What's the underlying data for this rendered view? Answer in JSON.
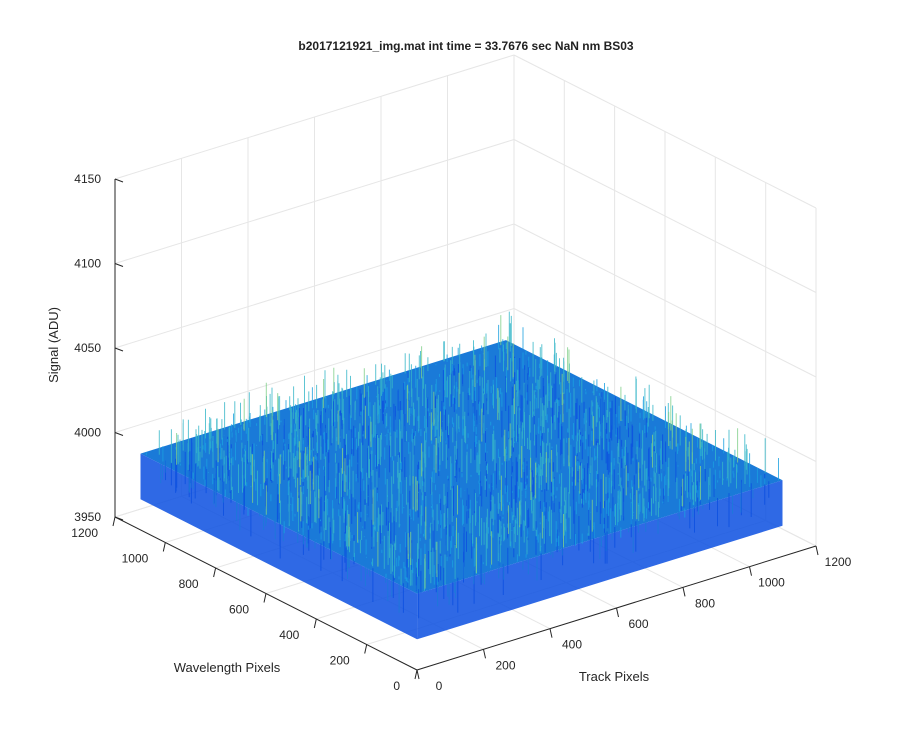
{
  "chart_data": {
    "type": "surface",
    "title": "b2017121921_img.mat int time = 33.7676 sec  NaN nm BS03",
    "zlabel": "Signal (ADU)",
    "xlabel": "Track Pixels",
    "ylabel": "Wavelength Pixels",
    "xlim": [
      0,
      1200
    ],
    "ylim": [
      0,
      1200
    ],
    "zlim": [
      3950,
      4150
    ],
    "x_ticks": [
      "0",
      "200",
      "400",
      "600",
      "800",
      "1000",
      "1200"
    ],
    "y_ticks": [
      "0",
      "200",
      "400",
      "600",
      "800",
      "1000",
      "1200"
    ],
    "z_ticks": [
      "3950",
      "4000",
      "4050",
      "4100",
      "4150"
    ],
    "grid": true,
    "surface": {
      "x_range": [
        1,
        1100
      ],
      "y_range": [
        1,
        1100
      ],
      "z_mean": 3995,
      "z_noise_range": [
        3960,
        4030
      ],
      "colormap": "parula",
      "colors": [
        "#0b4fe0",
        "#1a7ad8",
        "#1aa0e0",
        "#36b7c8",
        "#7fcf8a",
        "#e8e040"
      ]
    }
  }
}
